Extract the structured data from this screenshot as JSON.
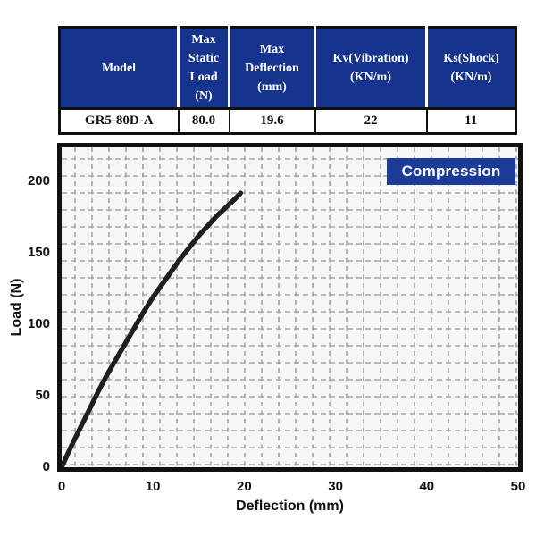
{
  "table": {
    "headers": [
      "Model",
      "Max\nStatic\nLoad\n(N)",
      "Max\nDeflection\n(mm)",
      "Kv(Vibration)\n(KN/m)",
      "Ks(Shock)\n(KN/m)"
    ],
    "row": [
      "GR5-80D-A",
      "80.0",
      "19.6",
      "22",
      "11"
    ]
  },
  "chart_data": {
    "type": "line",
    "badge_label": "Compression",
    "xlabel": "Deflection (mm)",
    "ylabel": "Load (N)",
    "xlim": [
      0,
      50
    ],
    "ylim": [
      0,
      224
    ],
    "xticks": [
      0,
      10,
      20,
      30,
      40,
      50
    ],
    "yticks": [
      0,
      50,
      100,
      150,
      200
    ],
    "grid": "dashed",
    "legend_position": "top-right-badge",
    "series": [
      {
        "name": "compression-curve",
        "points": [
          [
            0,
            0
          ],
          [
            1,
            14
          ],
          [
            2,
            27
          ],
          [
            3,
            40
          ],
          [
            4,
            53
          ],
          [
            5,
            65
          ],
          [
            6,
            76
          ],
          [
            7,
            87
          ],
          [
            8,
            98
          ],
          [
            9,
            109
          ],
          [
            10,
            119
          ],
          [
            11,
            128
          ],
          [
            12,
            137
          ],
          [
            13,
            146
          ],
          [
            14,
            154
          ],
          [
            15,
            162
          ],
          [
            16,
            169
          ],
          [
            17,
            176
          ],
          [
            18,
            182
          ],
          [
            19,
            188
          ],
          [
            19.6,
            192
          ]
        ]
      }
    ]
  },
  "colors": {
    "header_blue": "#16338d",
    "badge_blue": "#1d3c99",
    "curve": "#1f1f1f",
    "grid": "#a6a6a6",
    "plot_bg": "#f6f6f4",
    "border": "#111111"
  }
}
